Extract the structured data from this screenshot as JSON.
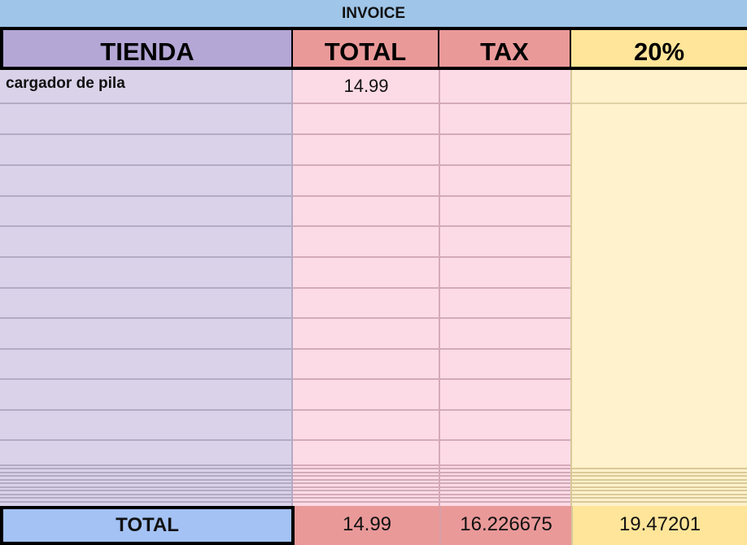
{
  "title": "INVOICE",
  "headers": [
    "TIENDA",
    "TOTAL",
    "TAX",
    "20%"
  ],
  "rows": [
    {
      "tienda": "cargador de pila",
      "total": "14.99",
      "tax": ""
    },
    {
      "tienda": "",
      "total": "",
      "tax": ""
    },
    {
      "tienda": "",
      "total": "",
      "tax": ""
    },
    {
      "tienda": "",
      "total": "",
      "tax": ""
    },
    {
      "tienda": "",
      "total": "",
      "tax": ""
    },
    {
      "tienda": "",
      "total": "",
      "tax": ""
    },
    {
      "tienda": "",
      "total": "",
      "tax": ""
    },
    {
      "tienda": "",
      "total": "",
      "tax": ""
    },
    {
      "tienda": "",
      "total": "",
      "tax": ""
    },
    {
      "tienda": "",
      "total": "",
      "tax": ""
    },
    {
      "tienda": "",
      "total": "",
      "tax": ""
    },
    {
      "tienda": "",
      "total": "",
      "tax": ""
    },
    {
      "tienda": "",
      "total": "",
      "tax": ""
    }
  ],
  "totals": {
    "label": "TOTAL",
    "total": "14.99",
    "tax": "16.226675",
    "pct": "19.47201"
  },
  "colors": {
    "title_bg": "#9fc5e8",
    "tienda_header": "#b4a7d6",
    "total_header": "#ea9999",
    "pct_header": "#ffe599",
    "tienda_body": "#d9d2e9",
    "total_body": "#fddbe6",
    "pct_body": "#fff2cc",
    "total_label_bg": "#a4c2f4"
  }
}
